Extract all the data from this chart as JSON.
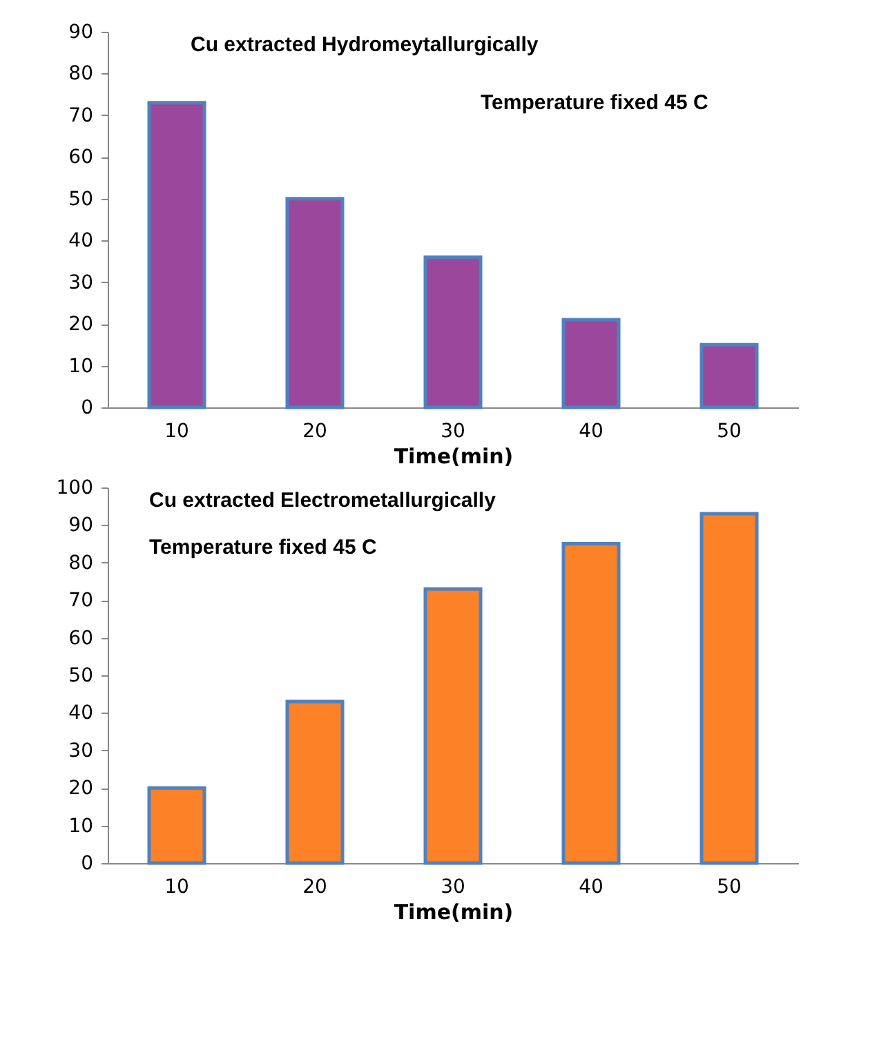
{
  "chart_data": [
    {
      "type": "bar",
      "title": "Cu extracted Hydromeytallurgically",
      "annotations": [
        "Temperature fixed 45 C"
      ],
      "xlabel": "Time(min)",
      "categories": [
        "10",
        "20",
        "30",
        "40",
        "50"
      ],
      "series": [
        {
          "color": "#9b479b",
          "values": [
            73,
            50,
            36,
            21,
            15
          ]
        }
      ],
      "ylim": [
        0,
        90
      ],
      "yticks": [
        0,
        10,
        20,
        30,
        40,
        50,
        60,
        70,
        80,
        90
      ],
      "grid": false
    },
    {
      "type": "bar",
      "title": "Cu extracted Electrometallurgically",
      "annotations": [
        "Temperature fixed 45 C"
      ],
      "xlabel": "Time(min)",
      "categories": [
        "10",
        "20",
        "30",
        "40",
        "50"
      ],
      "series": [
        {
          "color": "#fd8127",
          "values": [
            20,
            43,
            73,
            85,
            93
          ]
        }
      ],
      "ylim": [
        0,
        100
      ],
      "yticks": [
        0,
        10,
        20,
        30,
        40,
        50,
        60,
        70,
        80,
        90,
        100
      ],
      "grid": false
    }
  ]
}
